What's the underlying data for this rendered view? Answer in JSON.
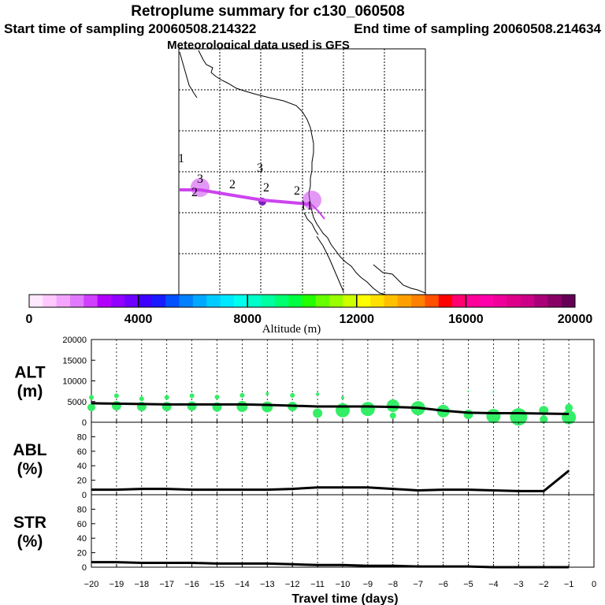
{
  "header": {
    "title": "Retroplume summary for c130_060508",
    "start_time": "Start time of sampling 20060508.214322",
    "end_time": "End time of sampling 20060508.214634",
    "met_data": "Meteorological data used is GFS"
  },
  "map": {
    "height_labels": [
      {
        "text": "1",
        "lon": -122.8,
        "lat": 43.1
      },
      {
        "text": "3",
        "lon": -121.2,
        "lat": 42.3
      },
      {
        "text": "2",
        "lon": -121.3,
        "lat": 41.3
      },
      {
        "text": "2",
        "lon": -119.2,
        "lat": 41.4
      },
      {
        "text": "3",
        "lon": -114.7,
        "lat": 42.6
      },
      {
        "text": "2",
        "lon": -114.1,
        "lat": 41.2
      },
      {
        "text": "2",
        "lon": -110.8,
        "lat": 40.8
      },
      {
        "text": "1",
        "lon": -110.0,
        "lat": 39.5
      },
      {
        "text": "1",
        "lon": -109.7,
        "lat": 39.4
      }
    ],
    "plume_track": [
      {
        "lon": -123.0,
        "lat": 41.0
      },
      {
        "lon": -121.0,
        "lat": 41.0
      },
      {
        "lon": -117.0,
        "lat": 40.5
      },
      {
        "lon": -114.5,
        "lat": 40.2
      },
      {
        "lon": -112.0,
        "lat": 39.8
      },
      {
        "lon": -110.0,
        "lat": 39.5
      }
    ],
    "plume_color": "#cc44ee"
  },
  "colorbar": {
    "label": "Altitude  (m)",
    "ticks": [
      "0",
      "4000",
      "8000",
      "12000",
      "16000",
      "20000"
    ],
    "colors": [
      "#ffe8ff",
      "#ffc8ff",
      "#f4a6ff",
      "#e27aff",
      "#d040ff",
      "#b200ff",
      "#9200ff",
      "#6e00ff",
      "#3c00ff",
      "#1a1aff",
      "#0050ff",
      "#0080ff",
      "#00a8ff",
      "#00ccff",
      "#00e8ff",
      "#00ffee",
      "#00ffc8",
      "#00ffa0",
      "#00ff70",
      "#00ff40",
      "#22ff00",
      "#66ff00",
      "#99ff00",
      "#ccff00",
      "#ffff00",
      "#ffe000",
      "#ffc000",
      "#ffa000",
      "#ff8000",
      "#ff5000",
      "#ff0000",
      "#ff0070",
      "#ff0099",
      "#ff00aa",
      "#ee0099",
      "#dd0088",
      "#cc0088",
      "#aa0077",
      "#880066",
      "#660055"
    ]
  },
  "chart_data": [
    {
      "type": "line",
      "label": [
        "ALT",
        "(m)"
      ],
      "ylim": [
        0,
        20000
      ],
      "yticks": [
        "0",
        "5000",
        "10000",
        "15000",
        "20000"
      ],
      "x": [
        -20,
        -19,
        -18,
        -17,
        -16,
        -15,
        -14,
        -13,
        -12,
        -11,
        -10,
        -9,
        -8,
        -7,
        -6,
        -5,
        -4,
        -3,
        -2,
        -1
      ],
      "values": [
        4600,
        4500,
        4400,
        4300,
        4300,
        4300,
        4300,
        4200,
        4000,
        3800,
        3800,
        3800,
        3700,
        3500,
        2800,
        2300,
        2200,
        2200,
        2100,
        2000
      ],
      "scatter_color": "#33ee66",
      "scatter": [
        {
          "x": -20,
          "y": 3600,
          "s": 5
        },
        {
          "x": -20,
          "y": 6000,
          "s": 3
        },
        {
          "x": -19,
          "y": 4000,
          "s": 6
        },
        {
          "x": -19,
          "y": 6400,
          "s": 3
        },
        {
          "x": -18,
          "y": 3800,
          "s": 6
        },
        {
          "x": -18,
          "y": 5700,
          "s": 3
        },
        {
          "x": -17,
          "y": 3800,
          "s": 6
        },
        {
          "x": -17,
          "y": 6000,
          "s": 3
        },
        {
          "x": -16,
          "y": 3900,
          "s": 6
        },
        {
          "x": -16,
          "y": 6400,
          "s": 3
        },
        {
          "x": -15,
          "y": 3700,
          "s": 6
        },
        {
          "x": -15,
          "y": 6100,
          "s": 3
        },
        {
          "x": -14,
          "y": 3800,
          "s": 7
        },
        {
          "x": -14,
          "y": 6500,
          "s": 3
        },
        {
          "x": -13,
          "y": 3700,
          "s": 7
        },
        {
          "x": -13,
          "y": 6900,
          "s": 2
        },
        {
          "x": -12,
          "y": 3800,
          "s": 6
        },
        {
          "x": -12,
          "y": 6500,
          "s": 3
        },
        {
          "x": -11,
          "y": 2200,
          "s": 6
        },
        {
          "x": -11,
          "y": 6800,
          "s": 2
        },
        {
          "x": -10,
          "y": 2900,
          "s": 9
        },
        {
          "x": -10,
          "y": 5900,
          "s": 2
        },
        {
          "x": -9,
          "y": 3200,
          "s": 9
        },
        {
          "x": -8,
          "y": 4000,
          "s": 8
        },
        {
          "x": -8,
          "y": 1600,
          "s": 4
        },
        {
          "x": -7,
          "y": 3400,
          "s": 9
        },
        {
          "x": -6,
          "y": 2700,
          "s": 8
        },
        {
          "x": -5,
          "y": 1900,
          "s": 6
        },
        {
          "x": -5,
          "y": 7500,
          "s": 1
        },
        {
          "x": -4,
          "y": 1500,
          "s": 9
        },
        {
          "x": -4,
          "y": 7300,
          "s": 1
        },
        {
          "x": -3,
          "y": 1300,
          "s": 11
        },
        {
          "x": -2,
          "y": 2800,
          "s": 6
        },
        {
          "x": -2,
          "y": 700,
          "s": 5
        },
        {
          "x": -1,
          "y": 1200,
          "s": 9
        },
        {
          "x": -1,
          "y": 3500,
          "s": 5
        }
      ]
    },
    {
      "type": "line",
      "label": [
        "ABL",
        "(%)"
      ],
      "ylim": [
        0,
        100
      ],
      "yticks": [
        "0",
        "20",
        "40",
        "60",
        "80"
      ],
      "x": [
        -20,
        -19,
        -18,
        -17,
        -16,
        -15,
        -14,
        -13,
        -12,
        -11,
        -10,
        -9,
        -8,
        -7,
        -6,
        -5,
        -4,
        -3,
        -2,
        -1
      ],
      "values": [
        7,
        7,
        8,
        8,
        7,
        7,
        7,
        7,
        8,
        10,
        10,
        10,
        8,
        6,
        7,
        7,
        6,
        5,
        5,
        33
      ]
    },
    {
      "type": "line",
      "label": [
        "STR",
        "(%)"
      ],
      "ylim": [
        0,
        100
      ],
      "yticks": [
        "0",
        "20",
        "40",
        "60",
        "80"
      ],
      "x": [
        -20,
        -19,
        -18,
        -17,
        -16,
        -15,
        -14,
        -13,
        -12,
        -11,
        -10,
        -9,
        -8,
        -7,
        -6,
        -5,
        -4,
        -3,
        -2,
        -1
      ],
      "values": [
        7,
        7,
        6,
        6,
        6,
        5,
        5,
        5,
        4,
        3,
        3,
        2,
        2,
        1,
        1,
        1,
        0,
        0,
        0,
        0
      ]
    }
  ],
  "xaxis": {
    "label": "Travel time (days)",
    "ticks": [
      "−20",
      "−19",
      "−18",
      "−17",
      "−16",
      "−15",
      "−14",
      "−13",
      "−12",
      "−11",
      "−10",
      "−9",
      "−8",
      "−7",
      "−6",
      "−5",
      "−4",
      "−3",
      "−2",
      "−1",
      "0"
    ]
  }
}
